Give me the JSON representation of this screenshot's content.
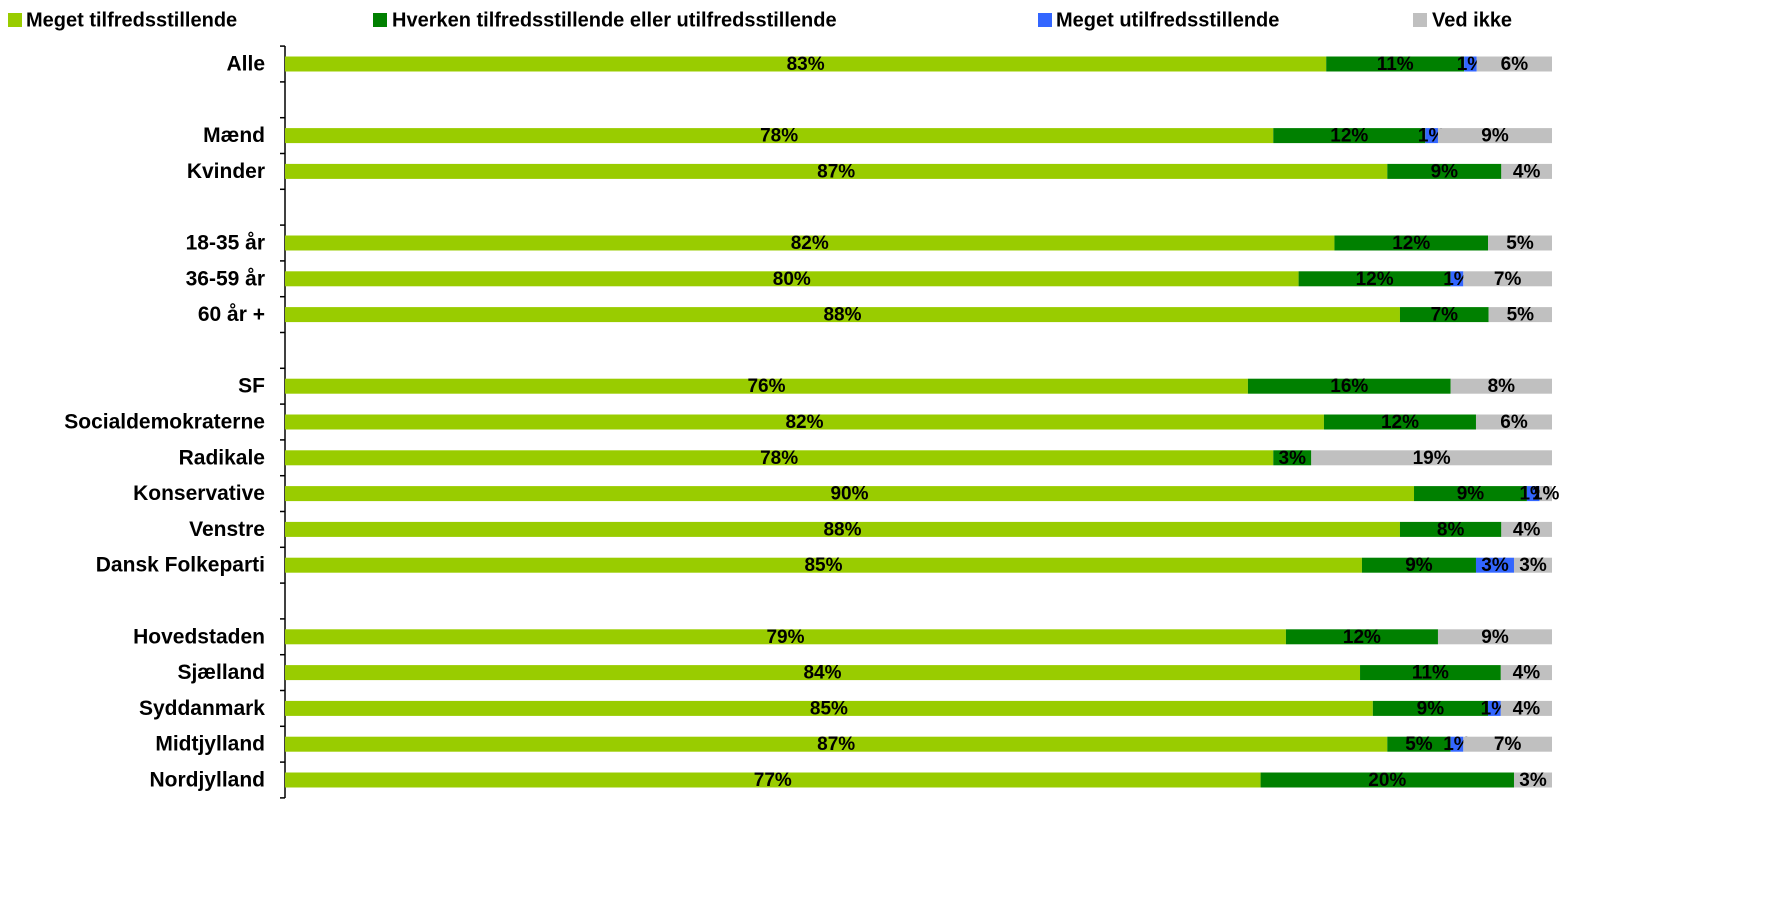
{
  "chart_data": {
    "type": "bar",
    "orientation": "horizontal",
    "stacked": true,
    "categories": [
      "Alle",
      null,
      "Mænd",
      "Kvinder",
      null,
      "18-35 år",
      "36-59 år",
      "60 år +",
      null,
      "SF",
      "Socialdemokraterne",
      "Radikale",
      "Konservative",
      "Venstre",
      "Dansk Folkeparti",
      null,
      "Hovedstaden",
      "Sjælland",
      "Syddanmark",
      "Midtjylland",
      "Nordjylland"
    ],
    "series": [
      {
        "name": "Meget tilfredsstillende",
        "color": "#99cc00",
        "values": [
          83,
          null,
          78,
          87,
          null,
          82,
          80,
          88,
          null,
          76,
          82,
          78,
          90,
          88,
          85,
          null,
          79,
          84,
          85,
          87,
          77
        ],
        "value_labels": [
          "83%",
          null,
          "78%",
          "87%",
          null,
          "82%",
          "80%",
          "88%",
          null,
          "76%",
          "82%",
          "78%",
          "90%",
          "88%",
          "85%",
          null,
          "79%",
          "84%",
          "85%",
          "87%",
          "77%"
        ]
      },
      {
        "name": "Hverken tilfredsstillende eller utilfredsstillende",
        "color": "#008000",
        "values": [
          11,
          null,
          12,
          9,
          null,
          12,
          12,
          7,
          null,
          16,
          12,
          3,
          9,
          8,
          9,
          null,
          12,
          11,
          9,
          5,
          20
        ],
        "value_labels": [
          "11%",
          null,
          "12%",
          "9%",
          null,
          "12%",
          "12%",
          "7%",
          null,
          "16%",
          "12%",
          "3%",
          "9%",
          "8%",
          "9%",
          null,
          "12%",
          "11%",
          "9%",
          "5%",
          "20%"
        ]
      },
      {
        "name": "Meget utilfredsstillende",
        "color": "#3366ff",
        "values": [
          1,
          null,
          1,
          null,
          null,
          null,
          1,
          null,
          null,
          null,
          null,
          null,
          1,
          null,
          3,
          null,
          null,
          null,
          1,
          1,
          null
        ],
        "value_labels": [
          "1%",
          null,
          "1%",
          null,
          null,
          null,
          "1%",
          null,
          null,
          null,
          null,
          null,
          "1%",
          null,
          "3%",
          null,
          null,
          null,
          "1%",
          "1%",
          null
        ]
      },
      {
        "name": "Ved ikke",
        "color": "#c0c0c0",
        "values": [
          6,
          null,
          9,
          4,
          null,
          5,
          7,
          5,
          null,
          8,
          6,
          19,
          1,
          4,
          3,
          null,
          9,
          4,
          4,
          7,
          3
        ],
        "value_labels": [
          "6%",
          null,
          "9%",
          "4%",
          null,
          "5%",
          "7%",
          "5%",
          null,
          "8%",
          "6%",
          "19%",
          "1%",
          "4%",
          "3%",
          null,
          "9%",
          "4%",
          "4%",
          "7%",
          "3%"
        ]
      }
    ]
  }
}
